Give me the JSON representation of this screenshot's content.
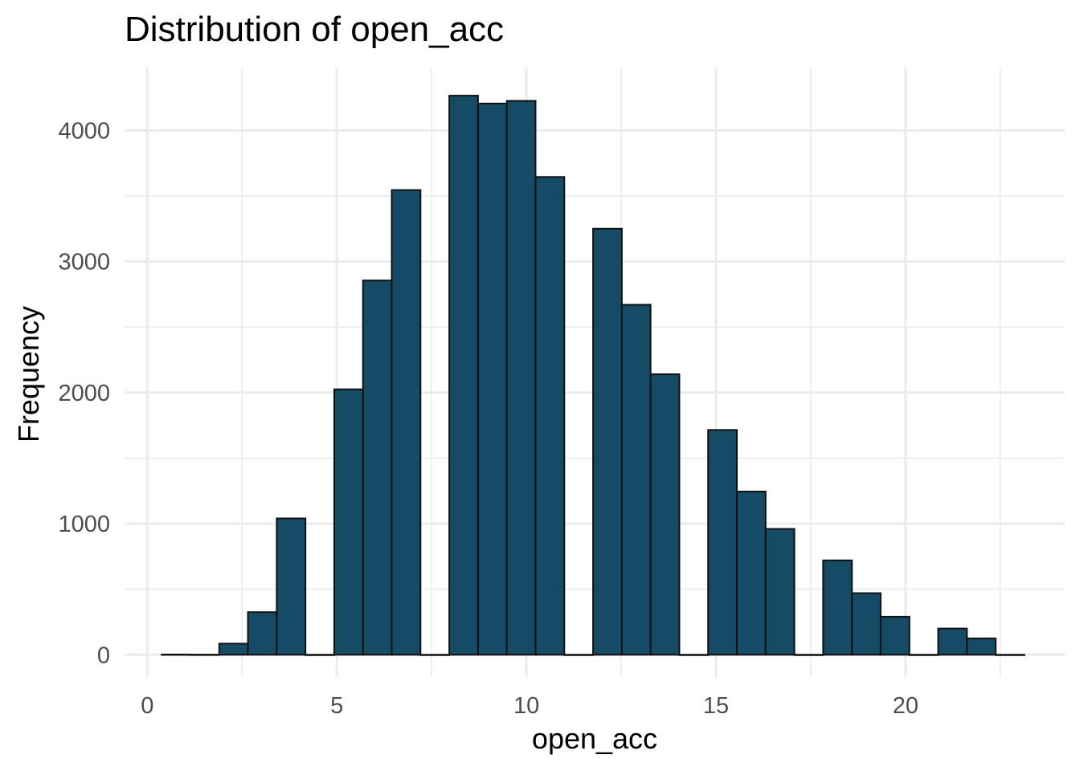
{
  "chart_data": {
    "type": "bar",
    "title": "Distribution of open_acc",
    "xlabel": "open_acc",
    "ylabel": "Frequency",
    "xlim": [
      -0.6,
      24.2
    ],
    "ylim": [
      -170,
      4480
    ],
    "x_ticks": [
      0,
      5,
      10,
      15,
      20
    ],
    "y_ticks": [
      0,
      1000,
      2000,
      3000,
      4000
    ],
    "grid": true,
    "bin_width": 0.7586,
    "bin_start": 0.379,
    "bins": [
      {
        "x": 0.758,
        "value": 2
      },
      {
        "x": 1.517,
        "value": 1
      },
      {
        "x": 2.276,
        "value": 85
      },
      {
        "x": 3.034,
        "value": 325
      },
      {
        "x": 3.793,
        "value": 1040
      },
      {
        "x": 4.552,
        "value": 0
      },
      {
        "x": 5.31,
        "value": 2025
      },
      {
        "x": 6.069,
        "value": 2855
      },
      {
        "x": 6.827,
        "value": 3545
      },
      {
        "x": 7.586,
        "value": 0
      },
      {
        "x": 8.345,
        "value": 4265
      },
      {
        "x": 9.103,
        "value": 4205
      },
      {
        "x": 9.862,
        "value": 4225
      },
      {
        "x": 10.621,
        "value": 3645
      },
      {
        "x": 11.379,
        "value": 0
      },
      {
        "x": 12.138,
        "value": 3250
      },
      {
        "x": 12.896,
        "value": 2670
      },
      {
        "x": 13.655,
        "value": 2140
      },
      {
        "x": 14.414,
        "value": 0
      },
      {
        "x": 15.172,
        "value": 1715
      },
      {
        "x": 15.931,
        "value": 1245
      },
      {
        "x": 16.689,
        "value": 960
      },
      {
        "x": 17.448,
        "value": 0
      },
      {
        "x": 18.207,
        "value": 720
      },
      {
        "x": 18.965,
        "value": 470
      },
      {
        "x": 19.724,
        "value": 290
      },
      {
        "x": 20.483,
        "value": 0
      },
      {
        "x": 21.241,
        "value": 200
      },
      {
        "x": 22.0,
        "value": 125
      },
      {
        "x": 22.758,
        "value": 0
      }
    ],
    "colors": {
      "bar_fill": "#164B66",
      "bar_stroke": "#111111",
      "grid": "#EBEBEB",
      "tick_text": "#4D4D4D",
      "text": "#000000"
    }
  }
}
